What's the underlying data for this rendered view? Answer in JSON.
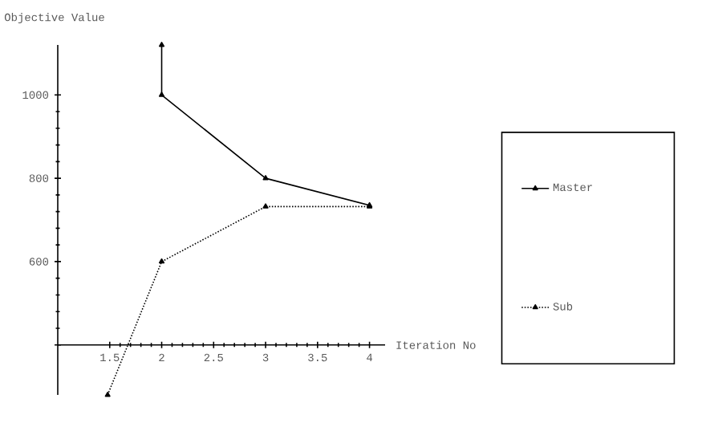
{
  "chart_data": {
    "type": "line",
    "xlabel": "Iteration No",
    "ylabel": "Objective Value",
    "xlim": [
      1,
      4.15
    ],
    "ylim": [
      280,
      1120
    ],
    "xticks": [
      1.5,
      2,
      2.5,
      3,
      3.5,
      4
    ],
    "yticks": [
      {
        "value": 400,
        "label": null
      },
      600,
      800,
      1000
    ],
    "legend": "right",
    "marker": "triangle",
    "grid": false,
    "series": [
      {
        "name": "Master",
        "color": "#000000",
        "line_style": "solid",
        "x": [
          2,
          2,
          3,
          4
        ],
        "values": [
          1120,
          1000,
          800,
          735
        ]
      },
      {
        "name": "Sub",
        "color": "#000000",
        "line_style": "dotted",
        "x": [
          1.48,
          2,
          3,
          4
        ],
        "values": [
          280,
          600,
          732,
          732
        ]
      }
    ]
  }
}
